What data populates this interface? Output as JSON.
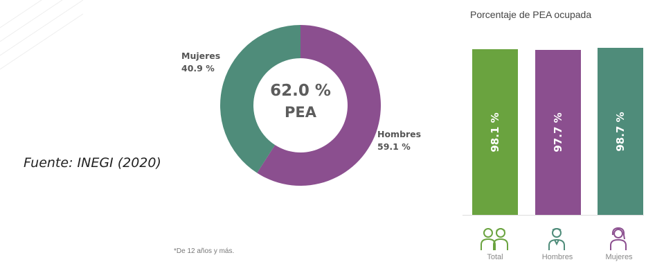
{
  "source_note": "Fuente: INEGI (2020)",
  "footnote": "*De 12 años y más.",
  "colors": {
    "green": "#6aa33f",
    "purple": "#8b4f8f",
    "teal": "#4f8c7a",
    "text_gray": "#5c5c5c"
  },
  "icons": {
    "total": "people-pair-icon",
    "hombres": "man-icon",
    "mujeres": "woman-icon"
  },
  "chart_data": [
    {
      "type": "pie",
      "variant": "donut",
      "center_value": "62.0 %",
      "center_label": "PEA",
      "slices": [
        {
          "name": "Hombres",
          "value": 59.1,
          "label": "59.1 %",
          "color": "#8b4f8f"
        },
        {
          "name": "Mujeres",
          "value": 40.9,
          "label": "40.9 %",
          "color": "#4f8c7a"
        }
      ]
    },
    {
      "type": "bar",
      "title": "Porcentaje de PEA ocupada",
      "categories": [
        "Total",
        "Hombres",
        "Mujeres"
      ],
      "values": [
        98.1,
        97.7,
        98.7
      ],
      "value_labels": [
        "98.1 %",
        "97.7 %",
        "98.7 %"
      ],
      "colors": [
        "#6aa33f",
        "#8b4f8f",
        "#4f8c7a"
      ],
      "ylim": [
        0,
        100
      ]
    }
  ]
}
